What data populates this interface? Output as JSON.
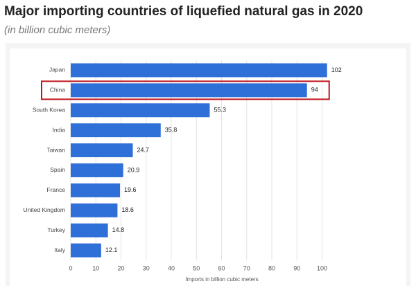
{
  "chart_data": {
    "type": "barh",
    "title": "Major importing countries of liquefied natural gas in 2020",
    "subtitle": "(in billion cubic meters)",
    "x_label": "Imports in billion cubic meters",
    "categories": [
      "Japan",
      "China",
      "South Korea",
      "India",
      "Taiwan",
      "Spain",
      "France",
      "United Kingdom",
      "Turkey",
      "Italy"
    ],
    "values": [
      102,
      94,
      55.3,
      35.8,
      24.7,
      20.9,
      19.6,
      18.6,
      14.8,
      12.1
    ],
    "color": "#2f6fd8",
    "highlight": "China",
    "highlight_color": "#c0161d",
    "xlim": [
      0,
      110
    ],
    "xticks": [
      0,
      10,
      20,
      30,
      40,
      50,
      60,
      70,
      80,
      90,
      100
    ],
    "grid": true
  }
}
